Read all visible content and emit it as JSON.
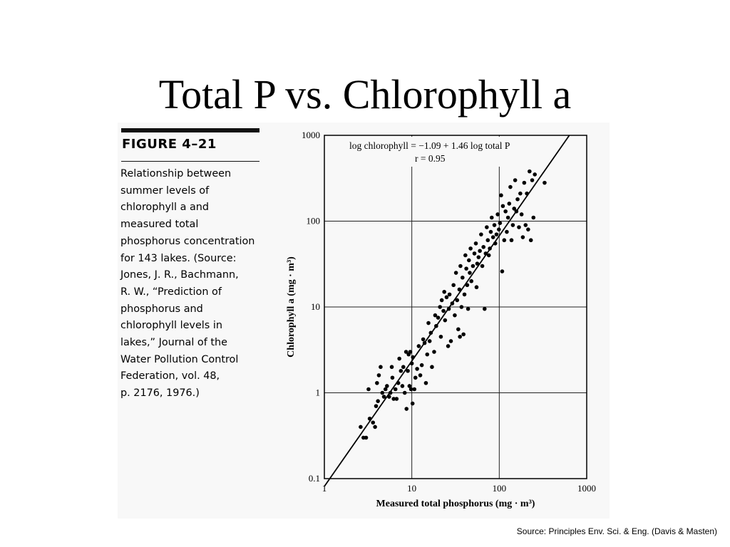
{
  "slide": {
    "title": "Total P vs. Chlorophyll a",
    "source": "Source: Principles Env. Sci. & Eng. (Davis & Masten)"
  },
  "figure": {
    "label": "FIGURE 4–21",
    "caption": "Relationship between\nsummer levels of\nchlorophyll a and\nmeasured total\nphosphorus concentration\nfor 143 lakes. (Source:\nJones, J. R., Bachmann,\nR. W., “Prediction of\nphosphorus and\nchlorophyll levels in\nlakes,” Journal of the\nWater Pollution Control\nFederation, vol. 48,\np. 2176, 1976.)"
  },
  "chart_data": {
    "type": "scatter",
    "xscale": "log",
    "yscale": "log",
    "xlim": [
      1,
      1000
    ],
    "ylim": [
      0.1,
      1000
    ],
    "xticks": [
      "1",
      "10",
      "100",
      "1000"
    ],
    "yticks": [
      "0.1",
      "1",
      "10",
      "100",
      "1000"
    ],
    "xlabel": "Measured total phosphorus (mg · m³)",
    "ylabel": "Chlorophyll a (mg · m³)",
    "grid": true,
    "annotation": [
      "log chlorophyll = −1.09 + 1.46 log total P",
      "r = 0.95"
    ],
    "regression": {
      "intercept": -1.09,
      "slope": 1.46
    },
    "points": [
      [
        2.6,
        0.4
      ],
      [
        2.8,
        0.3
      ],
      [
        3.0,
        0.3
      ],
      [
        3.2,
        1.1
      ],
      [
        3.3,
        0.5
      ],
      [
        3.6,
        0.45
      ],
      [
        3.8,
        0.4
      ],
      [
        3.9,
        0.7
      ],
      [
        4.0,
        1.3
      ],
      [
        4.1,
        0.8
      ],
      [
        4.2,
        1.6
      ],
      [
        4.4,
        2.0
      ],
      [
        4.6,
        1.0
      ],
      [
        4.8,
        0.9
      ],
      [
        5.0,
        1.1
      ],
      [
        5.2,
        1.2
      ],
      [
        5.5,
        0.9
      ],
      [
        5.7,
        1.0
      ],
      [
        5.9,
        2.0
      ],
      [
        6.0,
        1.5
      ],
      [
        6.2,
        0.85
      ],
      [
        6.5,
        1.1
      ],
      [
        6.7,
        0.85
      ],
      [
        7.0,
        1.3
      ],
      [
        7.2,
        2.5
      ],
      [
        7.5,
        1.8
      ],
      [
        7.8,
        1.2
      ],
      [
        8.0,
        2.0
      ],
      [
        8.3,
        1.0
      ],
      [
        8.6,
        3.0
      ],
      [
        8.7,
        0.65
      ],
      [
        9.0,
        1.8
      ],
      [
        9.2,
        2.8
      ],
      [
        9.4,
        1.2
      ],
      [
        9.6,
        3.0
      ],
      [
        9.8,
        1.1
      ],
      [
        10.0,
        2.2
      ],
      [
        10.2,
        0.75
      ],
      [
        10.3,
        2.6
      ],
      [
        10.7,
        1.1
      ],
      [
        11.0,
        1.5
      ],
      [
        11.5,
        1.9
      ],
      [
        12.0,
        3.5
      ],
      [
        12.5,
        1.6
      ],
      [
        13.0,
        2.1
      ],
      [
        13.5,
        4.2
      ],
      [
        14.0,
        3.8
      ],
      [
        14.5,
        1.3
      ],
      [
        15.0,
        2.8
      ],
      [
        15.5,
        6.5
      ],
      [
        16.0,
        4.0
      ],
      [
        16.5,
        5.0
      ],
      [
        17.0,
        2.0
      ],
      [
        18.0,
        3.0
      ],
      [
        18.5,
        8.0
      ],
      [
        19.0,
        6.0
      ],
      [
        20.0,
        7.5
      ],
      [
        21.0,
        10.0
      ],
      [
        21.5,
        4.5
      ],
      [
        22.0,
        12.0
      ],
      [
        23.0,
        9.0
      ],
      [
        23.5,
        15.0
      ],
      [
        24.0,
        7.0
      ],
      [
        25.0,
        13.0
      ],
      [
        26.0,
        3.5
      ],
      [
        26.5,
        9.5
      ],
      [
        27.0,
        14.0
      ],
      [
        28.0,
        4.0
      ],
      [
        29.0,
        11.0
      ],
      [
        30.0,
        18.0
      ],
      [
        31.0,
        8.0
      ],
      [
        32.0,
        25.0
      ],
      [
        33.0,
        12.0
      ],
      [
        34.0,
        5.5
      ],
      [
        35.0,
        16.0
      ],
      [
        35.5,
        4.5
      ],
      [
        36.0,
        30.0
      ],
      [
        37.0,
        10.0
      ],
      [
        38.0,
        22.0
      ],
      [
        39.0,
        4.8
      ],
      [
        40.0,
        14.0
      ],
      [
        41.0,
        40.0
      ],
      [
        42.0,
        28.0
      ],
      [
        43.0,
        18.0
      ],
      [
        44.0,
        9.5
      ],
      [
        45.0,
        35.0
      ],
      [
        46.0,
        25.0
      ],
      [
        47.0,
        48.0
      ],
      [
        48.0,
        20.0
      ],
      [
        50.0,
        30.0
      ],
      [
        52.0,
        42.0
      ],
      [
        54.0,
        55.0
      ],
      [
        55.0,
        17.0
      ],
      [
        56.0,
        32.0
      ],
      [
        58.0,
        38.0
      ],
      [
        60.0,
        45.0
      ],
      [
        62.0,
        70.0
      ],
      [
        64.0,
        30.0
      ],
      [
        66.0,
        50.0
      ],
      [
        68.0,
        9.5
      ],
      [
        70.0,
        42.0
      ],
      [
        72.0,
        85.0
      ],
      [
        74.0,
        60.0
      ],
      [
        76.0,
        40.0
      ],
      [
        78.0,
        48.0
      ],
      [
        80.0,
        75.0
      ],
      [
        82.0,
        110.0
      ],
      [
        85.0,
        65.0
      ],
      [
        88.0,
        90.0
      ],
      [
        90.0,
        55.0
      ],
      [
        93.0,
        70.0
      ],
      [
        96.0,
        120.0
      ],
      [
        99.0,
        80.0
      ],
      [
        102.0,
        95.0
      ],
      [
        105.0,
        200.0
      ],
      [
        108.0,
        26.0
      ],
      [
        110.0,
        150.0
      ],
      [
        114.0,
        60.0
      ],
      [
        118.0,
        130.0
      ],
      [
        122.0,
        75.0
      ],
      [
        126.0,
        110.0
      ],
      [
        130.0,
        160.0
      ],
      [
        134.0,
        250.0
      ],
      [
        138.0,
        60.0
      ],
      [
        143.0,
        90.0
      ],
      [
        148.0,
        140.0
      ],
      [
        152.0,
        300.0
      ],
      [
        157.0,
        130.0
      ],
      [
        162.0,
        180.0
      ],
      [
        168.0,
        85.0
      ],
      [
        174.0,
        210.0
      ],
      [
        180.0,
        120.0
      ],
      [
        186.0,
        65.0
      ],
      [
        193.0,
        280.0
      ],
      [
        200.0,
        90.0
      ],
      [
        207.0,
        210.0
      ],
      [
        214.0,
        80.0
      ],
      [
        222.0,
        380.0
      ],
      [
        230.0,
        60.0
      ],
      [
        238.0,
        300.0
      ],
      [
        246.0,
        110.0
      ],
      [
        255.0,
        350.0
      ],
      [
        330.0,
        280.0
      ]
    ]
  }
}
